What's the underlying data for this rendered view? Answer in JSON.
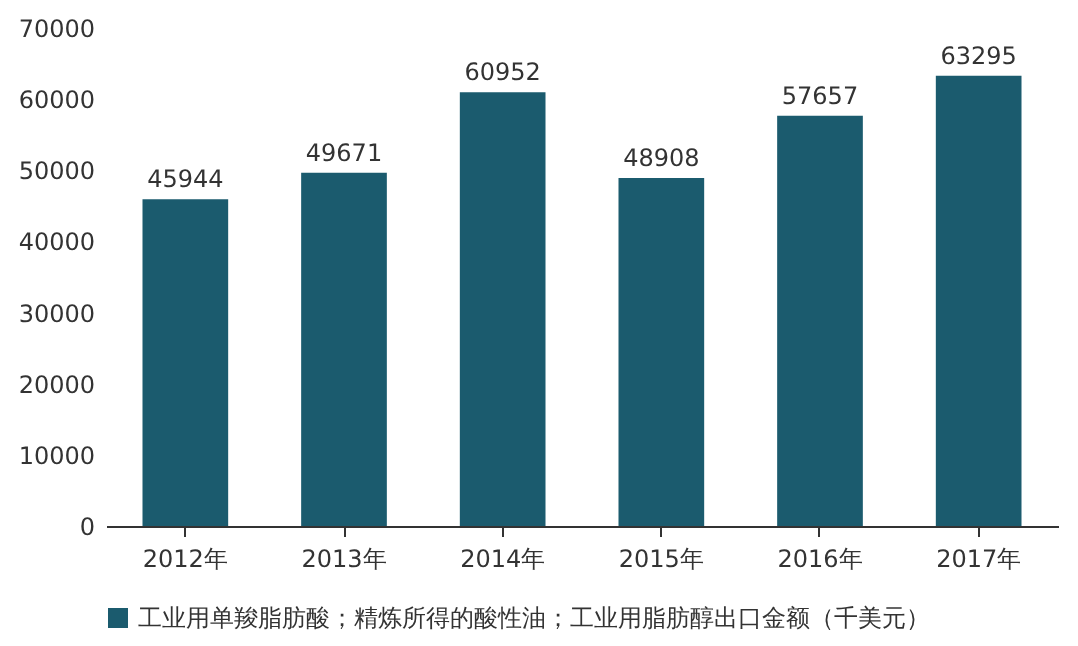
{
  "chart_data": {
    "type": "bar",
    "categories": [
      "2012年",
      "2013年",
      "2014年",
      "2015年",
      "2016年",
      "2017年"
    ],
    "series": [
      {
        "name": "工业用单羧脂肪酸；精炼所得的酸性油；工业用脂肪醇出口金额（千美元）",
        "color": "#1b5b6e",
        "values": [
          45944,
          49671,
          60952,
          48908,
          57657,
          63295
        ]
      }
    ],
    "ylim": [
      0,
      70000
    ],
    "yticks": [
      0,
      10000,
      20000,
      30000,
      40000,
      50000,
      60000,
      70000
    ],
    "grid": false,
    "legend": "bottom",
    "data_labels": true
  }
}
